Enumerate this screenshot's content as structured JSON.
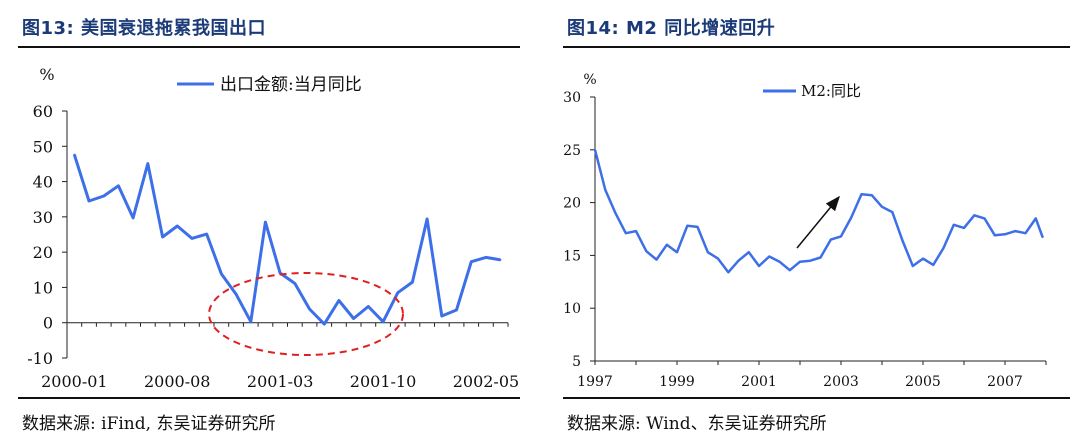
{
  "left": {
    "title": "图13:  美国衰退拖累我国出口",
    "source": "数据来源:  iFind,  东吴证券研究所",
    "chart_data": {
      "type": "line",
      "ylabel": "%",
      "ylim": [
        -10,
        60
      ],
      "yticks": [
        -10,
        0,
        10,
        20,
        30,
        40,
        50,
        60
      ],
      "xtick_labels": [
        "2000-01",
        "2000-08",
        "2001-03",
        "2001-10",
        "2002-05"
      ],
      "legend_position": "top",
      "series": [
        {
          "name": "出口金额:当月同比",
          "color": "#3d6fe8",
          "values": [
            47.7,
            34.5,
            35.9,
            38.8,
            29.7,
            45.1,
            24.3,
            27.4,
            23.9,
            25.1,
            13.9,
            8.1,
            0.3,
            28.5,
            14.1,
            11.1,
            3.9,
            -0.4,
            6.3,
            1.2,
            4.6,
            0.3,
            8.5,
            11.5,
            29.4,
            1.9,
            3.6,
            17.3,
            18.5,
            17.8
          ]
        }
      ],
      "annotations": [
        "red dashed ellipse around 2001 trough"
      ],
      "grid": false
    }
  },
  "right": {
    "title": "图14:  M2 同比增速回升",
    "source": "数据来源:  Wind、东吴证券研究所",
    "chart_data": {
      "type": "line",
      "ylabel": "%",
      "ylim": [
        5,
        30
      ],
      "yticks": [
        5,
        10,
        15,
        20,
        25,
        30
      ],
      "xtick_labels": [
        "1997",
        "1999",
        "2001",
        "2003",
        "2005",
        "2007"
      ],
      "legend_position": "top",
      "series": [
        {
          "name": "M2:同比",
          "color": "#3d6fe8",
          "x": [
            1997.0,
            1997.25,
            1997.5,
            1997.75,
            1998.0,
            1998.25,
            1998.5,
            1998.75,
            1999.0,
            1999.25,
            1999.5,
            1999.75,
            2000.0,
            2000.25,
            2000.5,
            2000.75,
            2001.0,
            2001.25,
            2001.5,
            2001.75,
            2002.0,
            2002.25,
            2002.5,
            2002.75,
            2003.0,
            2003.25,
            2003.5,
            2003.75,
            2004.0,
            2004.25,
            2004.5,
            2004.75,
            2005.0,
            2005.25,
            2005.5,
            2005.75,
            2006.0,
            2006.25,
            2006.5,
            2006.75,
            2007.0,
            2007.25,
            2007.5,
            2007.75,
            2007.92
          ],
          "values": [
            25.0,
            21.2,
            19.0,
            17.1,
            17.3,
            15.4,
            14.6,
            16.0,
            15.3,
            17.8,
            17.7,
            15.3,
            14.7,
            13.4,
            14.5,
            15.3,
            14.0,
            14.9,
            14.4,
            13.6,
            14.4,
            14.5,
            14.8,
            16.5,
            16.8,
            18.6,
            20.8,
            20.7,
            19.6,
            19.1,
            16.4,
            14.0,
            14.7,
            14.1,
            15.7,
            17.9,
            17.6,
            18.8,
            18.5,
            16.9,
            17.0,
            17.3,
            17.1,
            18.5,
            16.7
          ]
        }
      ],
      "annotations": [
        "black arrow pointing to 2003 peak"
      ],
      "grid": false
    }
  }
}
